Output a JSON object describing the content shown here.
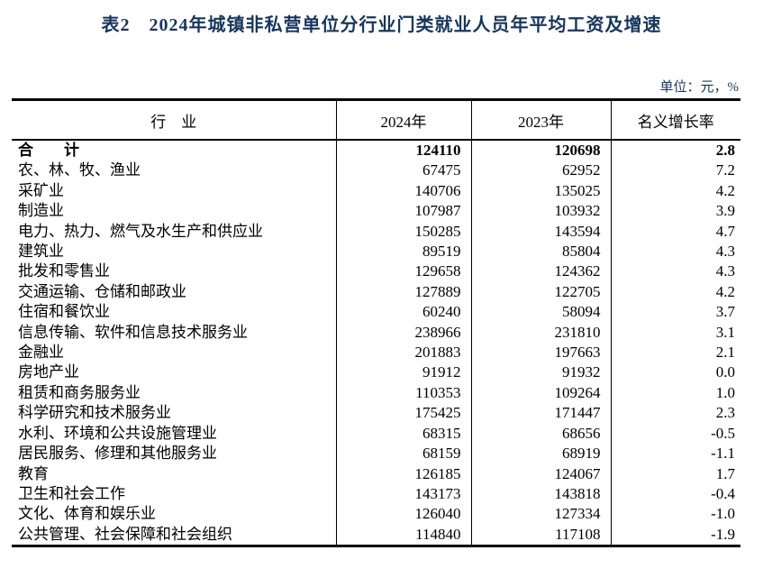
{
  "page": {
    "title": "表2　2024年城镇非私营单位分行业门类就业人员年平均工资及增速",
    "unit_note": "单位：元，%"
  },
  "colors": {
    "title_text": "#17365d",
    "table_text": "#000000",
    "border": "#000000",
    "background": "#ffffff"
  },
  "table": {
    "columns": [
      {
        "key": "industry",
        "label": "行　业"
      },
      {
        "key": "y2024",
        "label": "2024年"
      },
      {
        "key": "y2023",
        "label": "2023年"
      },
      {
        "key": "growth",
        "label": "名义增长率"
      }
    ],
    "rows": [
      {
        "industry": "合　　计",
        "y2024": "124110",
        "y2023": "120698",
        "growth": "2.8",
        "bold": true
      },
      {
        "industry": "农、林、牧、渔业",
        "y2024": "67475",
        "y2023": "62952",
        "growth": "7.2",
        "bold": false
      },
      {
        "industry": "采矿业",
        "y2024": "140706",
        "y2023": "135025",
        "growth": "4.2",
        "bold": false
      },
      {
        "industry": "制造业",
        "y2024": "107987",
        "y2023": "103932",
        "growth": "3.9",
        "bold": false
      },
      {
        "industry": "电力、热力、燃气及水生产和供应业",
        "y2024": "150285",
        "y2023": "143594",
        "growth": "4.7",
        "bold": false
      },
      {
        "industry": "建筑业",
        "y2024": "89519",
        "y2023": "85804",
        "growth": "4.3",
        "bold": false
      },
      {
        "industry": "批发和零售业",
        "y2024": "129658",
        "y2023": "124362",
        "growth": "4.3",
        "bold": false
      },
      {
        "industry": "交通运输、仓储和邮政业",
        "y2024": "127889",
        "y2023": "122705",
        "growth": "4.2",
        "bold": false
      },
      {
        "industry": "住宿和餐饮业",
        "y2024": "60240",
        "y2023": "58094",
        "growth": "3.7",
        "bold": false
      },
      {
        "industry": "信息传输、软件和信息技术服务业",
        "y2024": "238966",
        "y2023": "231810",
        "growth": "3.1",
        "bold": false
      },
      {
        "industry": "金融业",
        "y2024": "201883",
        "y2023": "197663",
        "growth": "2.1",
        "bold": false
      },
      {
        "industry": "房地产业",
        "y2024": "91912",
        "y2023": "91932",
        "growth": "0.0",
        "bold": false
      },
      {
        "industry": "租赁和商务服务业",
        "y2024": "110353",
        "y2023": "109264",
        "growth": "1.0",
        "bold": false
      },
      {
        "industry": "科学研究和技术服务业",
        "y2024": "175425",
        "y2023": "171447",
        "growth": "2.3",
        "bold": false
      },
      {
        "industry": "水利、环境和公共设施管理业",
        "y2024": "68315",
        "y2023": "68656",
        "growth": "-0.5",
        "bold": false
      },
      {
        "industry": "居民服务、修理和其他服务业",
        "y2024": "68159",
        "y2023": "68919",
        "growth": "-1.1",
        "bold": false
      },
      {
        "industry": "教育",
        "y2024": "126185",
        "y2023": "124067",
        "growth": "1.7",
        "bold": false
      },
      {
        "industry": "卫生和社会工作",
        "y2024": "143173",
        "y2023": "143818",
        "growth": "-0.4",
        "bold": false
      },
      {
        "industry": "文化、体育和娱乐业",
        "y2024": "126040",
        "y2023": "127334",
        "growth": "-1.0",
        "bold": false
      },
      {
        "industry": "公共管理、社会保障和社会组织",
        "y2024": "114840",
        "y2023": "117108",
        "growth": "-1.9",
        "bold": false
      }
    ]
  }
}
